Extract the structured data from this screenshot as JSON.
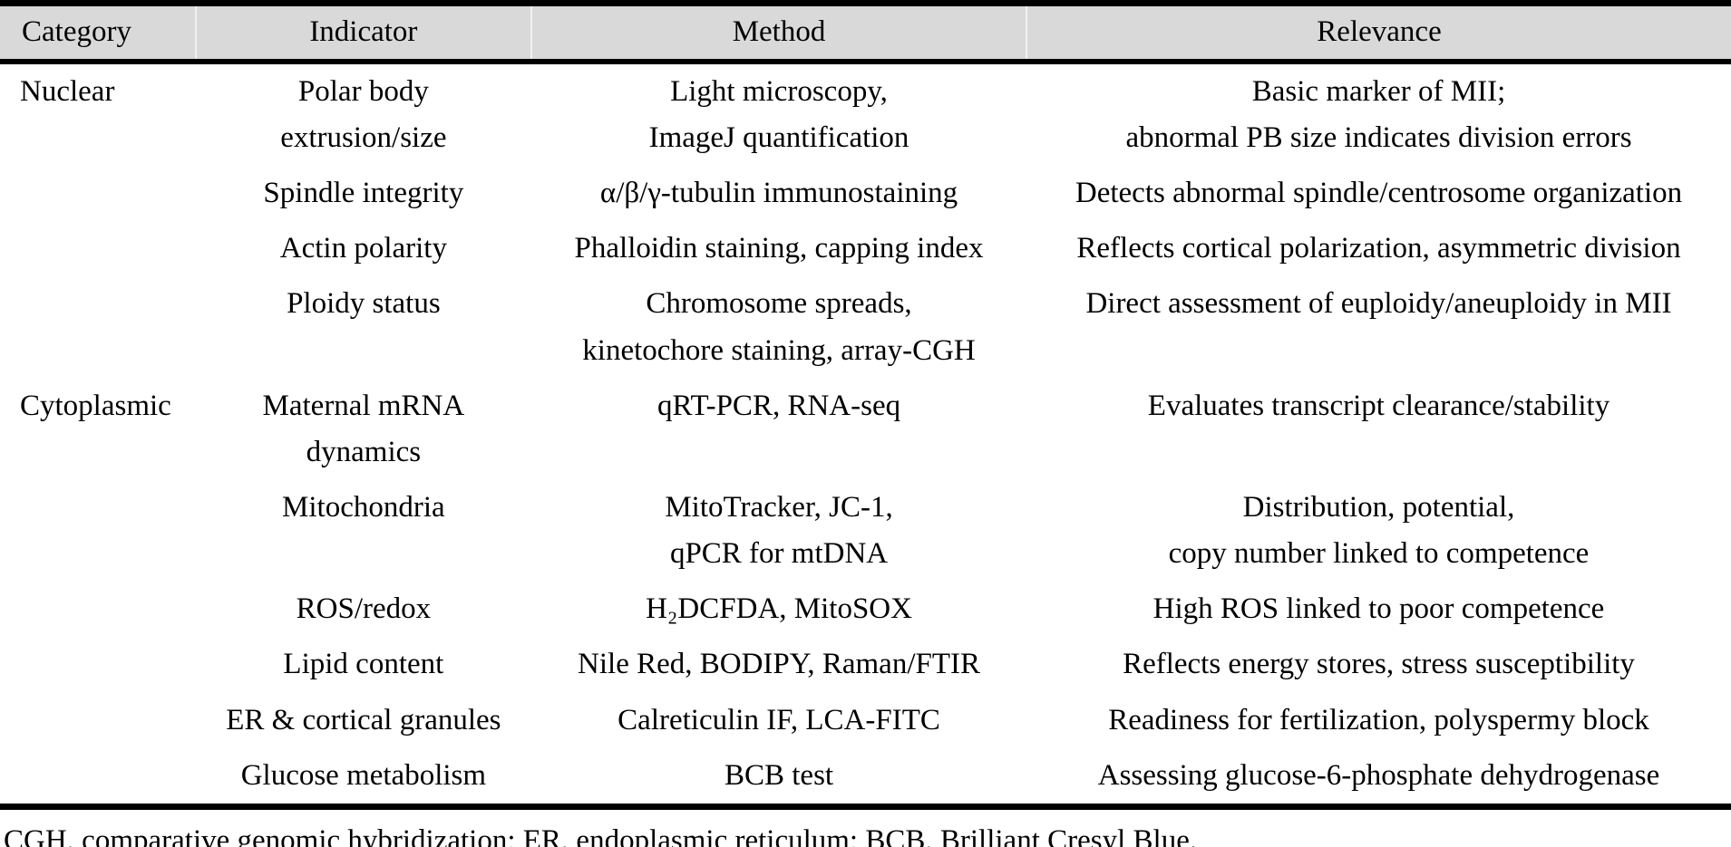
{
  "table": {
    "columns": [
      {
        "label": "Category"
      },
      {
        "label": "Indicator"
      },
      {
        "label": "Method"
      },
      {
        "label": "Relevance"
      }
    ],
    "rows": [
      {
        "category": "Nuclear",
        "indicator": "Polar body\nextrusion/size",
        "method": "Light microscopy,\nImageJ quantification",
        "relevance": "Basic marker of MII;\nabnormal PB size indicates division errors"
      },
      {
        "category": "",
        "indicator": "Spindle integrity",
        "method": "α/β/γ-tubulin immunostaining",
        "relevance": "Detects abnormal spindle/centrosome organization"
      },
      {
        "category": "",
        "indicator": "Actin polarity",
        "method": "Phalloidin staining, capping index",
        "relevance": "Reflects cortical polarization, asymmetric division"
      },
      {
        "category": "",
        "indicator": "Ploidy status",
        "method": "Chromosome spreads,\nkinetochore staining, array-CGH",
        "relevance": "Direct assessment of euploidy/aneuploidy in MII"
      },
      {
        "category": "Cytoplasmic",
        "indicator": "Maternal mRNA\ndynamics",
        "method": "qRT-PCR, RNA-seq",
        "relevance": "Evaluates transcript clearance/stability"
      },
      {
        "category": "",
        "indicator": "Mitochondria",
        "method": "MitoTracker, JC-1,\nqPCR for mtDNA",
        "relevance": "Distribution, potential,\ncopy number linked to competence"
      },
      {
        "category": "",
        "indicator": "ROS/redox",
        "method": "H₂DCFDA, MitoSOX",
        "relevance": "High ROS linked to poor competence"
      },
      {
        "category": "",
        "indicator": "Lipid content",
        "method": "Nile Red, BODIPY, Raman/FTIR",
        "relevance": "Reflects energy stores, stress susceptibility"
      },
      {
        "category": "",
        "indicator": "ER & cortical granules",
        "method": "Calreticulin IF, LCA-FITC",
        "relevance": "Readiness for fertilization, polyspermy block"
      },
      {
        "category": "",
        "indicator": "Glucose metabolism",
        "method": "BCB test",
        "relevance": "Assessing glucose-6-phosphate dehydrogenase"
      }
    ],
    "footnote": "CGH, comparative genomic hybridization; ER, endoplasmic reticulum; BCB, Brilliant Cresyl Blue.",
    "colors": {
      "header_background": "#d9d9d9",
      "border": "#000000",
      "text": "#000000"
    }
  }
}
